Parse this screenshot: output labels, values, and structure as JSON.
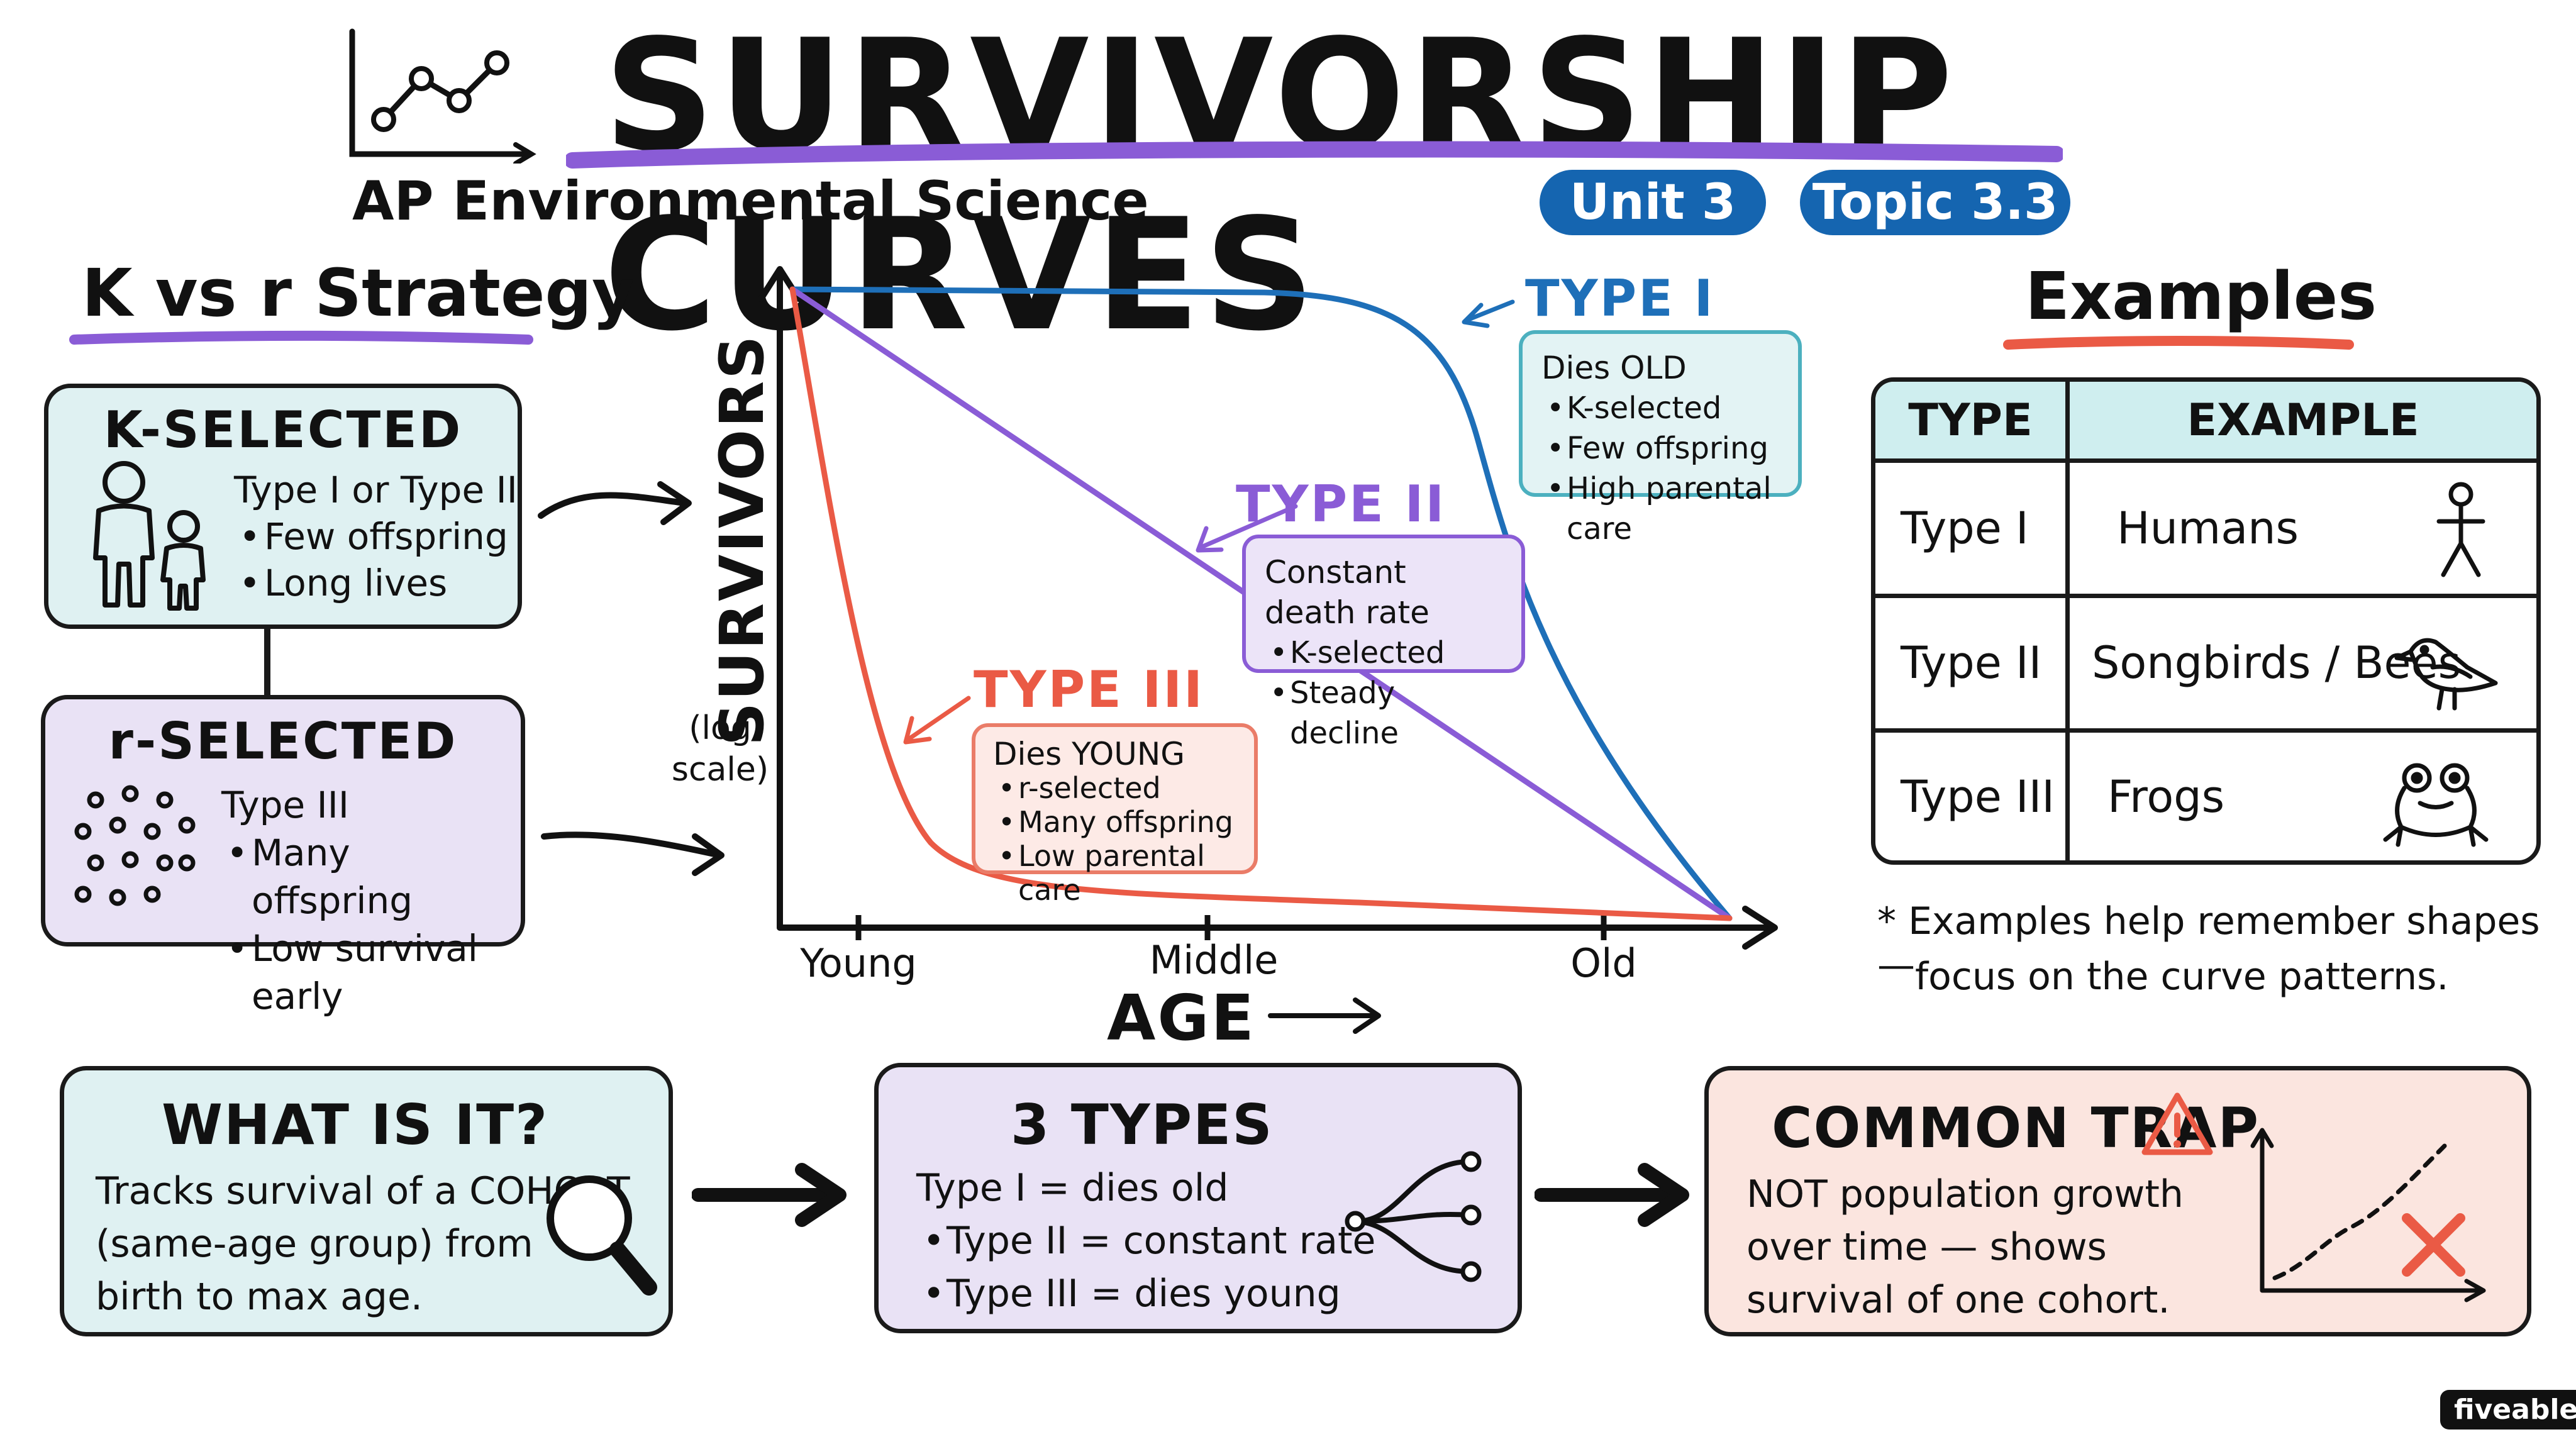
{
  "header": {
    "title": "SURVIVORSHIP CURVES",
    "subtitle": "AP Environmental Science",
    "badges": [
      "Unit 3",
      "Topic 3.3"
    ]
  },
  "strategy": {
    "heading": "K vs r Strategy",
    "k_selected": {
      "title": "K-SELECTED",
      "lead": "Type I or Type II",
      "points": [
        "Few offspring",
        "Long lives"
      ]
    },
    "r_selected": {
      "title": "r-SELECTED",
      "lead": "Type III",
      "points": [
        "Many offspring",
        "Low survival early"
      ]
    }
  },
  "chart_data": {
    "type": "line",
    "ylabel": "SURVIVORS",
    "ylabel_note": "(log scale)",
    "xlabel": "AGE",
    "x_ticks": [
      "Young",
      "Middle",
      "Old"
    ],
    "series": [
      {
        "name": "TYPE I",
        "color": "#1e6fb8",
        "shape": "high until old age, then sharp drop"
      },
      {
        "name": "TYPE II",
        "color": "#8a5cd6",
        "shape": "steady straight decline"
      },
      {
        "name": "TYPE III",
        "color": "#ea5a45",
        "shape": "sharp early drop, then flat"
      }
    ],
    "callouts": {
      "type1": {
        "label": "TYPE I",
        "lead": "Dies OLD",
        "points": [
          "K-selected",
          "Few offspring",
          "High parental care"
        ]
      },
      "type2": {
        "label": "TYPE II",
        "lead": "Constant death rate",
        "points": [
          "K-selected",
          "Steady decline"
        ]
      },
      "type3": {
        "label": "TYPE III",
        "lead": "Dies YOUNG",
        "points": [
          "r-selected",
          "Many offspring",
          "Low parental care"
        ]
      }
    }
  },
  "examples": {
    "heading": "Examples",
    "columns": [
      "TYPE",
      "EXAMPLE"
    ],
    "rows": [
      {
        "type": "Type I",
        "example": "Humans",
        "icon": "stick-figure-icon"
      },
      {
        "type": "Type II",
        "example": "Songbirds / Bees",
        "icon": "bird-icon"
      },
      {
        "type": "Type III",
        "example": "Frogs",
        "icon": "frog-icon"
      }
    ],
    "note_line1": "* Examples help remember shapes —",
    "note_line2": "focus on the curve patterns."
  },
  "bottom": {
    "what": {
      "title": "WHAT IS IT?",
      "lines": [
        "Tracks survival of a COHORT",
        "(same-age group) from",
        "birth to max age."
      ]
    },
    "types": {
      "title": "3 TYPES",
      "lines": [
        "Type I = dies old",
        "Type II = constant rate",
        "Type III = dies young"
      ]
    },
    "trap": {
      "title": "COMMON TRAP",
      "lines": [
        "NOT population growth",
        "over time — shows",
        "survival of one cohort."
      ]
    }
  },
  "brand": "fiveable",
  "colors": {
    "blue": "#1e6fb8",
    "purple": "#8a5cd6",
    "red": "#ea5a45",
    "teal_fill": "#dff1f2",
    "purple_fill": "#e9e2f5",
    "peach_fill": "#fbe5df"
  }
}
